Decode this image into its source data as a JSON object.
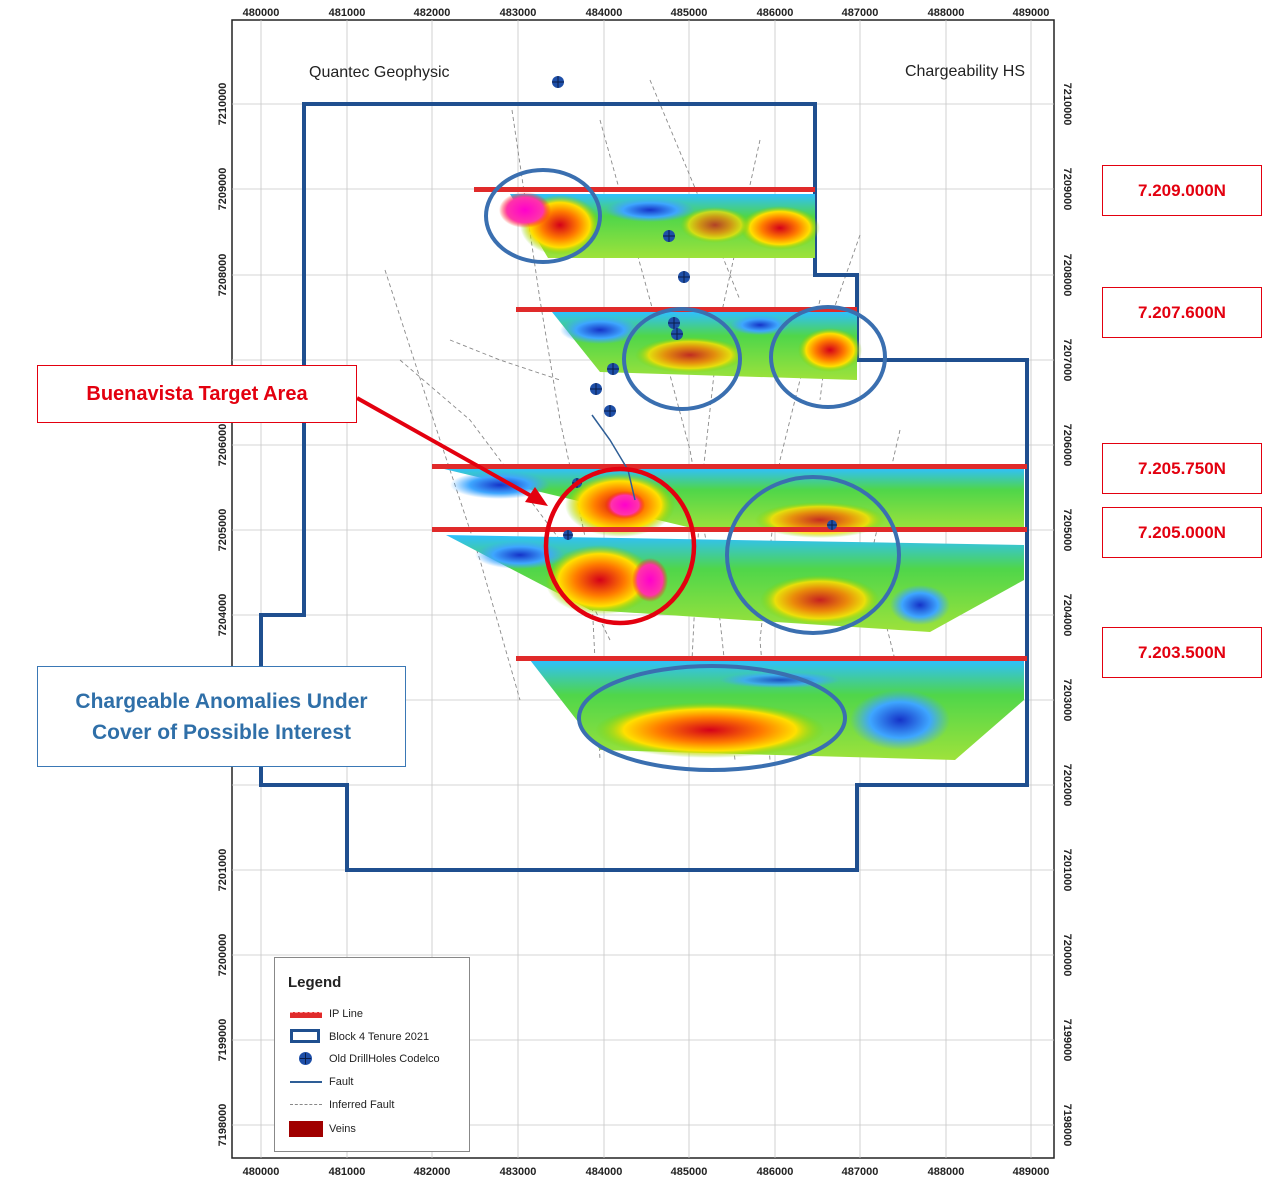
{
  "map": {
    "top_left_label": "Quantec Geophysic",
    "top_right_label": "Chargeability HS",
    "easting_ticks": [
      "480000",
      "481000",
      "482000",
      "483000",
      "484000",
      "485000",
      "486000",
      "487000",
      "488000",
      "489000"
    ],
    "northing_ticks": [
      "7210000",
      "7209000",
      "7208000",
      "7207000",
      "7206000",
      "7205000",
      "7204000",
      "7203000",
      "7202000",
      "7201000",
      "7200000",
      "7199000",
      "7198000"
    ]
  },
  "callouts": {
    "line_7209000": "7.209.000N",
    "line_7207600": "7.207.600N",
    "line_7205750": "7.205.750N",
    "line_7205000": "7.205.000N",
    "line_7203500": "7.203.500N"
  },
  "annotations": {
    "target_area": "Buenavista Target Area",
    "anomalies_line1": "Chargeable Anomalies Under",
    "anomalies_line2": "Cover of Possible Interest"
  },
  "legend": {
    "title": "Legend",
    "ip_line": "IP Line",
    "block": "Block 4 Tenure 2021",
    "drillholes": "Old DrillHoles Codelco",
    "fault": "Fault",
    "inferred_fault": "Inferred Fault",
    "veins": "Veins"
  },
  "colors": {
    "ip_line": "#e02a2a",
    "block": "#1f4f8f",
    "anomaly_circle": "#3a6fb0",
    "target_circle": "#e3000f",
    "drillhole": "#1e4fa8"
  },
  "icons": {
    "drillhole": "drillhole-icon"
  }
}
